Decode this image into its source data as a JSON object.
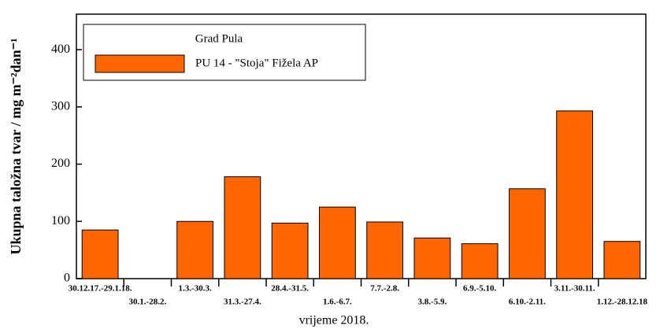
{
  "chart_data": {
    "type": "bar",
    "y_label": "Ukupna taložna tvar / mg m⁻²dan⁻¹",
    "x_label": "vrijeme 2018.",
    "legend_title": "Grad Pula",
    "categories": [
      "30.12.17.-29.1.18.",
      "30.1.-28.2.",
      "1.3.-30.3.",
      "31.3.-27.4.",
      "28.4.-31.5.",
      "1.6.-6.7.",
      "7.7.-2.8.",
      "3.8.-5.9.",
      "6.9.-5.10.",
      "6.10.-2.11.",
      "3.11.-30.11.",
      "1.12.-28.12.18"
    ],
    "series": [
      {
        "name": "PU 14 - \"Stoja\" Fižela AP",
        "color": "#ff6600",
        "values": [
          85,
          null,
          100,
          178,
          97,
          125,
          99,
          71,
          61,
          157,
          293,
          65
        ]
      }
    ],
    "ylim": [
      0,
      462
    ],
    "yticks": [
      0,
      100,
      200,
      300,
      400
    ]
  }
}
